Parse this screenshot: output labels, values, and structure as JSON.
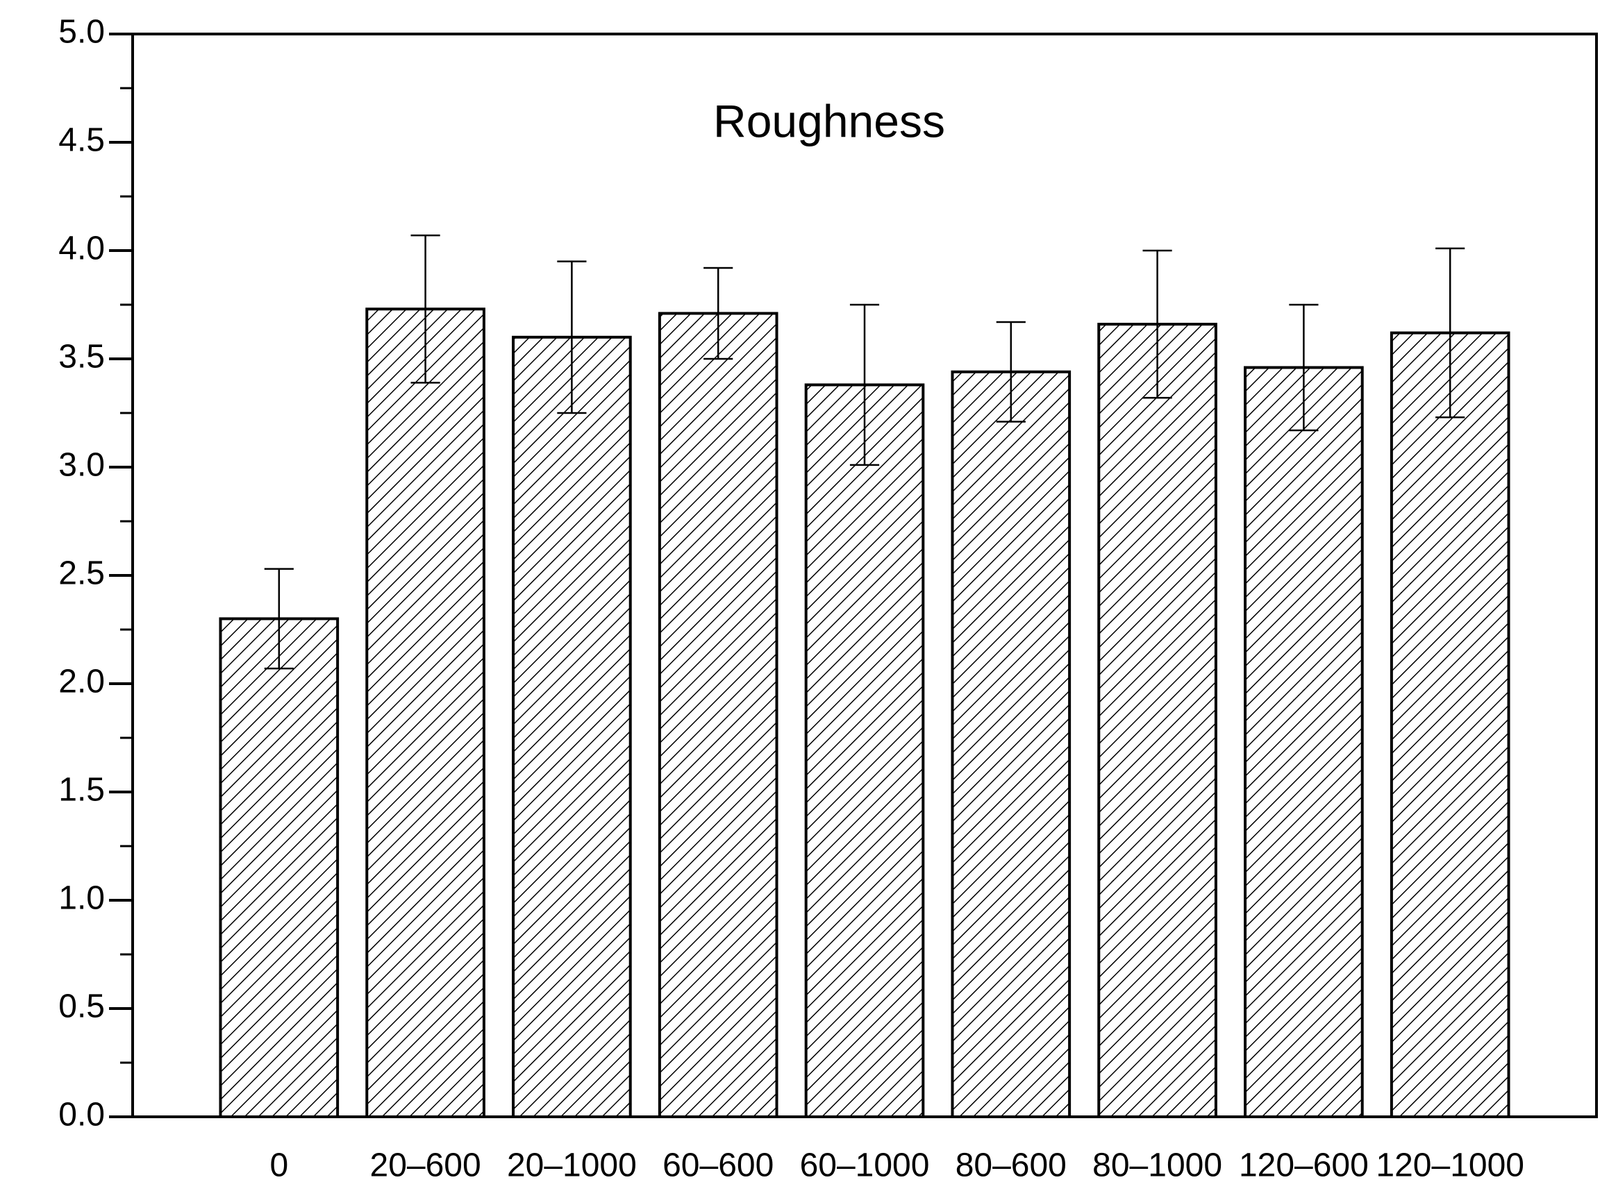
{
  "chart_data": {
    "type": "bar",
    "title": "Roughness",
    "categories": [
      "0",
      "20–600",
      "20–1000",
      "60–600",
      "60–1000",
      "80–600",
      "80–1000",
      "120–600",
      "120–1000"
    ],
    "values": [
      2.3,
      3.73,
      3.6,
      3.71,
      3.38,
      3.44,
      3.66,
      3.46,
      3.62
    ],
    "errors": [
      0.23,
      0.34,
      0.35,
      0.21,
      0.37,
      0.23,
      0.34,
      0.29,
      0.39
    ],
    "color": "#000000",
    "ylim": [
      0,
      5
    ],
    "yticks": [
      {
        "value": 0,
        "label": "0.0"
      },
      {
        "value": 0.5,
        "label": "0.5"
      },
      {
        "value": 1,
        "label": "1.0"
      },
      {
        "value": 1.5,
        "label": "1.5"
      },
      {
        "value": 2,
        "label": "2.0"
      },
      {
        "value": 2.5,
        "label": "2.5"
      },
      {
        "value": 3,
        "label": "3.0"
      },
      {
        "value": 3.5,
        "label": "3.5"
      },
      {
        "value": 4,
        "label": "4.0"
      },
      {
        "value": 4.5,
        "label": "4.5"
      },
      {
        "value": 5,
        "label": "5.0"
      }
    ],
    "grid": false
  }
}
